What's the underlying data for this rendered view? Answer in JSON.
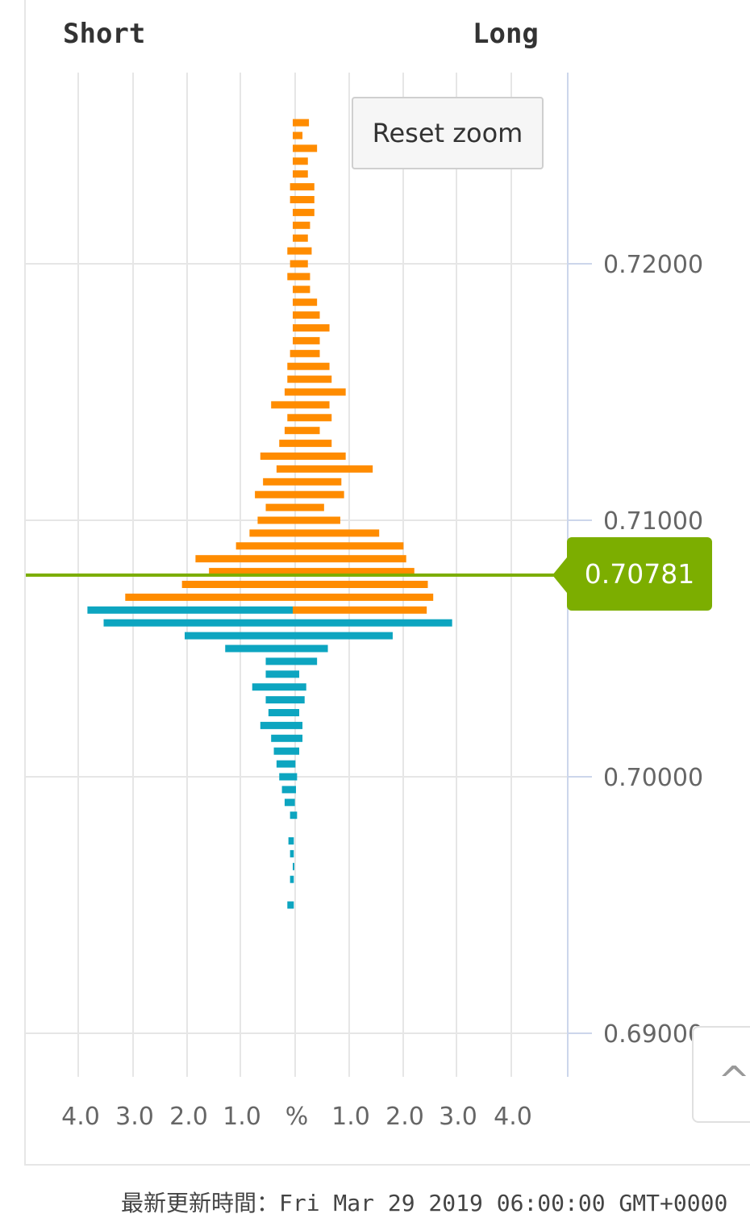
{
  "labels": {
    "short": "Short",
    "long": "Long"
  },
  "reset_zoom": "Reset zoom",
  "current_price": "0.70781",
  "footer_note": "最新更新時間：Fri Mar 29 2019 06:00:00 GMT+0000",
  "colors": {
    "long_bar": "#0da5c0",
    "short_bar": "#ff8c00",
    "price_line": "#7cae00",
    "grid": "#e6e6e6",
    "axis": "#ccd6eb"
  },
  "chart_data": {
    "type": "bar",
    "orientation": "horizontal",
    "xlabel": "%",
    "x_tick_labels": [
      "4.0",
      "3.0",
      "2.0",
      "1.0",
      "%",
      "1.0",
      "2.0",
      "3.0",
      "4.0"
    ],
    "y_ticks": [
      0.72,
      0.71,
      0.7,
      0.69
    ],
    "y_tick_labels": [
      "0.72000",
      "0.71000",
      "0.70000",
      "0.69000"
    ],
    "ylim": [
      0.6885,
      0.7265
    ],
    "xlim": [
      -4.0,
      4.0
    ],
    "current_price": 0.70781,
    "left_series": [
      [
        0.7255,
        0.0,
        0.0
      ],
      [
        0.725,
        0.0,
        0.0
      ],
      [
        0.7245,
        0.0,
        0.0
      ],
      [
        0.724,
        0.0,
        0.0
      ],
      [
        0.7235,
        0.0,
        0.0
      ],
      [
        0.723,
        0.05,
        0.0
      ],
      [
        0.7225,
        0.05,
        0.0
      ],
      [
        0.722,
        0.0,
        0.0
      ],
      [
        0.7215,
        0.0,
        0.0
      ],
      [
        0.721,
        0.0,
        0.0
      ],
      [
        0.7205,
        0.1,
        0.0
      ],
      [
        0.72,
        0.05,
        0.0
      ],
      [
        0.7195,
        0.1,
        0.0
      ],
      [
        0.719,
        0.0,
        0.0
      ],
      [
        0.7185,
        0.0,
        0.0
      ],
      [
        0.718,
        0.0,
        0.0
      ],
      [
        0.7175,
        0.0,
        0.0
      ],
      [
        0.717,
        0.0,
        0.0
      ],
      [
        0.7165,
        0.05,
        0.0
      ],
      [
        0.716,
        0.1,
        0.0
      ],
      [
        0.7155,
        0.1,
        0.0
      ],
      [
        0.715,
        0.15,
        0.0
      ],
      [
        0.7145,
        0.4,
        0.0
      ],
      [
        0.714,
        0.1,
        0.0
      ],
      [
        0.7135,
        0.15,
        0.0
      ],
      [
        0.713,
        0.25,
        0.0
      ],
      [
        0.7125,
        0.6,
        0.0
      ],
      [
        0.712,
        0.3,
        0.0
      ],
      [
        0.7115,
        0.55,
        0.0
      ],
      [
        0.711,
        0.7,
        0.0
      ],
      [
        0.7105,
        0.5,
        0.0
      ],
      [
        0.71,
        0.65,
        0.0
      ],
      [
        0.7095,
        0.8,
        0.0
      ],
      [
        0.709,
        1.05,
        0.0
      ],
      [
        0.7085,
        1.8,
        0.0
      ],
      [
        0.708,
        1.55,
        0.0
      ],
      [
        0.7075,
        2.05,
        0.0
      ],
      [
        0.707,
        3.1,
        0.0
      ],
      [
        0.7065,
        0.0,
        3.8
      ],
      [
        0.706,
        0.0,
        3.5
      ],
      [
        0.7055,
        0.0,
        2.0
      ],
      [
        0.705,
        0.0,
        1.25
      ],
      [
        0.7045,
        0.0,
        0.5
      ],
      [
        0.704,
        0.0,
        0.5
      ],
      [
        0.7035,
        0.0,
        0.75
      ],
      [
        0.703,
        0.0,
        0.5
      ],
      [
        0.7025,
        0.0,
        0.45
      ],
      [
        0.702,
        0.0,
        0.6
      ],
      [
        0.7015,
        0.0,
        0.4
      ],
      [
        0.701,
        0.0,
        0.35
      ],
      [
        0.7005,
        0.0,
        0.3
      ],
      [
        0.7,
        0.0,
        0.25
      ],
      [
        0.6995,
        0.0,
        0.2
      ],
      [
        0.699,
        0.0,
        0.15
      ],
      [
        0.6985,
        0.0,
        0.05
      ],
      [
        0.698,
        0.0,
        0.0
      ],
      [
        0.6975,
        0.0,
        0.08
      ],
      [
        0.697,
        0.0,
        0.05
      ],
      [
        0.6965,
        0.0,
        0.0
      ],
      [
        0.696,
        0.0,
        0.05
      ],
      [
        0.6955,
        0.0,
        0.0
      ],
      [
        0.695,
        0.0,
        0.1
      ]
    ],
    "right_series": [
      [
        0.7255,
        0.3,
        0.0
      ],
      [
        0.725,
        0.18,
        0.0
      ],
      [
        0.7245,
        0.45,
        0.0
      ],
      [
        0.724,
        0.28,
        0.0
      ],
      [
        0.7235,
        0.28,
        0.0
      ],
      [
        0.723,
        0.4,
        0.0
      ],
      [
        0.7225,
        0.4,
        0.0
      ],
      [
        0.722,
        0.4,
        0.0
      ],
      [
        0.7215,
        0.32,
        0.0
      ],
      [
        0.721,
        0.28,
        0.0
      ],
      [
        0.7205,
        0.35,
        0.0
      ],
      [
        0.72,
        0.28,
        0.0
      ],
      [
        0.7195,
        0.32,
        0.0
      ],
      [
        0.719,
        0.32,
        0.0
      ],
      [
        0.7185,
        0.45,
        0.0
      ],
      [
        0.718,
        0.5,
        0.0
      ],
      [
        0.7175,
        0.68,
        0.0
      ],
      [
        0.717,
        0.5,
        0.0
      ],
      [
        0.7165,
        0.5,
        0.0
      ],
      [
        0.716,
        0.68,
        0.0
      ],
      [
        0.7155,
        0.72,
        0.0
      ],
      [
        0.715,
        0.98,
        0.0
      ],
      [
        0.7145,
        0.68,
        0.0
      ],
      [
        0.714,
        0.72,
        0.0
      ],
      [
        0.7135,
        0.5,
        0.0
      ],
      [
        0.713,
        0.72,
        0.0
      ],
      [
        0.7125,
        0.98,
        0.0
      ],
      [
        0.712,
        1.48,
        0.0
      ],
      [
        0.7115,
        0.9,
        0.0
      ],
      [
        0.711,
        0.95,
        0.0
      ],
      [
        0.7105,
        0.58,
        0.0
      ],
      [
        0.71,
        0.88,
        0.0
      ],
      [
        0.7095,
        1.6,
        0.0
      ],
      [
        0.709,
        2.05,
        0.0
      ],
      [
        0.7085,
        2.1,
        0.0
      ],
      [
        0.708,
        2.25,
        0.0
      ],
      [
        0.7075,
        2.5,
        0.0
      ],
      [
        0.707,
        2.6,
        0.0
      ],
      [
        0.7065,
        2.48,
        0.0
      ],
      [
        0.706,
        0.0,
        2.95
      ],
      [
        0.7055,
        0.0,
        1.85
      ],
      [
        0.705,
        0.0,
        0.65
      ],
      [
        0.7045,
        0.0,
        0.45
      ],
      [
        0.704,
        0.0,
        0.12
      ],
      [
        0.7035,
        0.0,
        0.25
      ],
      [
        0.703,
        0.0,
        0.22
      ],
      [
        0.7025,
        0.0,
        0.12
      ],
      [
        0.702,
        0.0,
        0.18
      ],
      [
        0.7015,
        0.0,
        0.18
      ],
      [
        0.701,
        0.0,
        0.12
      ],
      [
        0.7005,
        0.0,
        0.05
      ],
      [
        0.7,
        0.0,
        0.08
      ],
      [
        0.6995,
        0.0,
        0.06
      ],
      [
        0.699,
        0.0,
        0.04
      ],
      [
        0.6985,
        0.0,
        0.08
      ],
      [
        0.698,
        0.0,
        0.0
      ],
      [
        0.6975,
        0.0,
        0.02
      ],
      [
        0.697,
        0.0,
        0.02
      ],
      [
        0.6965,
        0.0,
        0.03
      ],
      [
        0.696,
        0.0,
        0.02
      ],
      [
        0.6955,
        0.0,
        0.0
      ],
      [
        0.695,
        0.0,
        0.02
      ]
    ]
  }
}
